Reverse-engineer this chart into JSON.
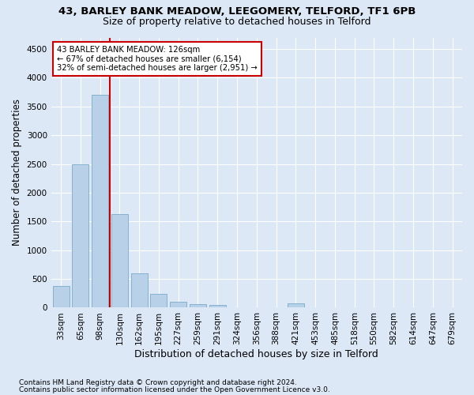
{
  "title1": "43, BARLEY BANK MEADOW, LEEGOMERY, TELFORD, TF1 6PB",
  "title2": "Size of property relative to detached houses in Telford",
  "xlabel": "Distribution of detached houses by size in Telford",
  "ylabel": "Number of detached properties",
  "categories": [
    "33sqm",
    "65sqm",
    "98sqm",
    "130sqm",
    "162sqm",
    "195sqm",
    "227sqm",
    "259sqm",
    "291sqm",
    "324sqm",
    "356sqm",
    "388sqm",
    "421sqm",
    "453sqm",
    "485sqm",
    "518sqm",
    "550sqm",
    "582sqm",
    "614sqm",
    "647sqm",
    "679sqm"
  ],
  "values": [
    380,
    2500,
    3700,
    1630,
    600,
    240,
    100,
    60,
    45,
    0,
    0,
    0,
    70,
    0,
    0,
    0,
    0,
    0,
    0,
    0,
    0
  ],
  "bar_color": "#b8d0e8",
  "bar_edge_color": "#7aaac8",
  "vline_color": "#cc0000",
  "vline_x": 2.5,
  "annotation_line1": "43 BARLEY BANK MEADOW: 126sqm",
  "annotation_line2": "← 67% of detached houses are smaller (6,154)",
  "annotation_line3": "32% of semi-detached houses are larger (2,951) →",
  "annotation_box_color": "#ffffff",
  "annotation_box_edge": "#cc0000",
  "ylim": [
    0,
    4700
  ],
  "yticks": [
    0,
    500,
    1000,
    1500,
    2000,
    2500,
    3000,
    3500,
    4000,
    4500
  ],
  "footnote1": "Contains HM Land Registry data © Crown copyright and database right 2024.",
  "footnote2": "Contains public sector information licensed under the Open Government Licence v3.0.",
  "background_color": "#dce8f5",
  "plot_background": "#dce8f5",
  "title1_fontsize": 9.5,
  "title2_fontsize": 9,
  "ylabel_fontsize": 8.5,
  "xlabel_fontsize": 9,
  "grid_color": "#ffffff",
  "tick_fontsize": 7.5,
  "footnote_fontsize": 6.5
}
